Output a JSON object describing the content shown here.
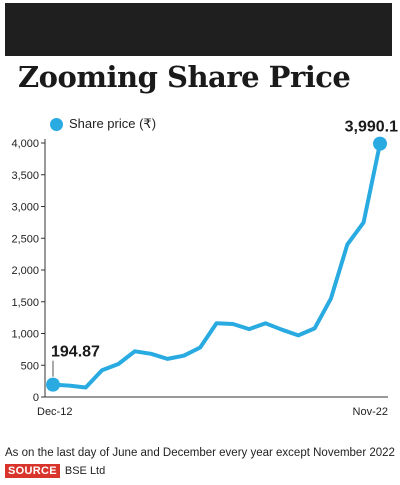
{
  "chart_data": {
    "type": "line",
    "title": "Zooming Share Price",
    "series": [
      {
        "name": "Share price (₹)",
        "color": "#29abe2",
        "values": [
          194.87,
          180,
          150,
          420,
          520,
          720,
          680,
          600,
          650,
          780,
          1160,
          1150,
          1070,
          1160,
          1060,
          970,
          1080,
          1550,
          2400,
          2750,
          3990.1
        ]
      }
    ],
    "x_tick_labels": [
      "Dec-12",
      "Nov-22"
    ],
    "y_ticks": [
      "0",
      "500",
      "1,000",
      "1,500",
      "2,000",
      "2,500",
      "3,000",
      "3,500",
      "4,000"
    ],
    "ylim": [
      0,
      4000
    ],
    "annotations": {
      "first": "194.87",
      "last": "3,990.1"
    },
    "grid": false,
    "legend_position": "top-left"
  },
  "footnote": "As on the last day of June and December every year except November 2022",
  "source": {
    "badge": "SOURCE",
    "text": "BSE Ltd"
  }
}
